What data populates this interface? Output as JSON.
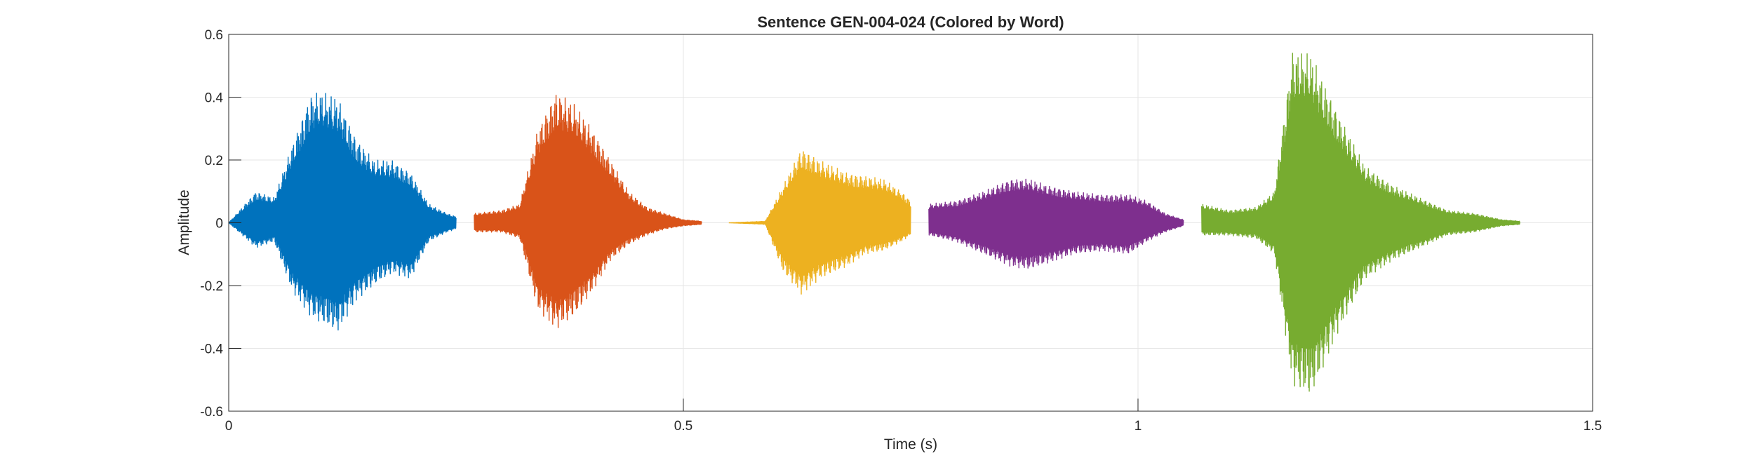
{
  "chart_data": {
    "type": "line",
    "title": "Sentence GEN-004-024 (Colored by Word)",
    "xlabel": "Time (s)",
    "ylabel": "Amplitude",
    "xlim": [
      0,
      1.5
    ],
    "ylim": [
      -0.6,
      0.6
    ],
    "xticks": [
      0,
      0.5,
      1,
      1.5
    ],
    "xtick_labels": [
      "0",
      "0.5",
      "1",
      "1.5"
    ],
    "yticks": [
      0.6,
      0.4,
      0.2,
      0,
      -0.2,
      -0.4,
      -0.6
    ],
    "ytick_labels": [
      "0.6",
      "0.4",
      "0.2",
      "0",
      "-0.2",
      "-0.4",
      "-0.6"
    ],
    "grid": true,
    "series": [
      {
        "color": "#0072BD",
        "x": [
          0.0,
          0.03,
          0.05,
          0.07,
          0.09,
          0.1,
          0.12,
          0.14,
          0.16,
          0.18,
          0.2,
          0.22,
          0.24,
          0.25
        ],
        "y_upper": [
          0.0,
          0.1,
          0.08,
          0.25,
          0.41,
          0.42,
          0.4,
          0.27,
          0.2,
          0.2,
          0.16,
          0.06,
          0.03,
          0.02
        ],
        "y_lower": [
          0.0,
          -0.08,
          -0.06,
          -0.22,
          -0.3,
          -0.32,
          -0.35,
          -0.25,
          -0.2,
          -0.16,
          -0.18,
          -0.06,
          -0.03,
          -0.02
        ]
      },
      {
        "color": "#D95319",
        "x": [
          0.27,
          0.3,
          0.32,
          0.34,
          0.36,
          0.38,
          0.4,
          0.42,
          0.44,
          0.46,
          0.48,
          0.5,
          0.52
        ],
        "y_upper": [
          0.03,
          0.04,
          0.06,
          0.3,
          0.42,
          0.38,
          0.3,
          0.2,
          0.1,
          0.05,
          0.03,
          0.01,
          0.005
        ],
        "y_lower": [
          -0.03,
          -0.03,
          -0.05,
          -0.28,
          -0.34,
          -0.3,
          -0.22,
          -0.12,
          -0.07,
          -0.04,
          -0.02,
          -0.01,
          -0.005
        ]
      },
      {
        "color": "#EDB120",
        "x": [
          0.55,
          0.59,
          0.61,
          0.63,
          0.65,
          0.68,
          0.7,
          0.72,
          0.74,
          0.75
        ],
        "y_upper": [
          0.0,
          0.005,
          0.12,
          0.24,
          0.2,
          0.16,
          0.15,
          0.14,
          0.1,
          0.07
        ],
        "y_lower": [
          0.0,
          -0.005,
          -0.16,
          -0.23,
          -0.18,
          -0.14,
          -0.1,
          -0.09,
          -0.06,
          -0.04
        ]
      },
      {
        "color": "#7E2F8E",
        "x": [
          0.77,
          0.8,
          0.83,
          0.86,
          0.88,
          0.9,
          0.93,
          0.96,
          0.99,
          1.01,
          1.03,
          1.05
        ],
        "y_upper": [
          0.06,
          0.07,
          0.1,
          0.14,
          0.14,
          0.12,
          0.1,
          0.09,
          0.09,
          0.07,
          0.03,
          0.01
        ],
        "y_lower": [
          -0.04,
          -0.06,
          -0.1,
          -0.14,
          -0.15,
          -0.13,
          -0.1,
          -0.09,
          -0.1,
          -0.06,
          -0.03,
          -0.01
        ]
      },
      {
        "color": "#77AC30",
        "x": [
          1.07,
          1.1,
          1.13,
          1.15,
          1.17,
          1.19,
          1.22,
          1.25,
          1.28,
          1.31,
          1.34,
          1.37,
          1.4,
          1.42
        ],
        "y_upper": [
          0.06,
          0.04,
          0.05,
          0.1,
          0.55,
          0.54,
          0.35,
          0.18,
          0.12,
          0.08,
          0.04,
          0.03,
          0.01,
          0.005
        ],
        "y_lower": [
          -0.04,
          -0.04,
          -0.05,
          -0.1,
          -0.52,
          -0.56,
          -0.35,
          -0.18,
          -0.12,
          -0.08,
          -0.04,
          -0.03,
          -0.01,
          -0.005
        ]
      }
    ]
  }
}
